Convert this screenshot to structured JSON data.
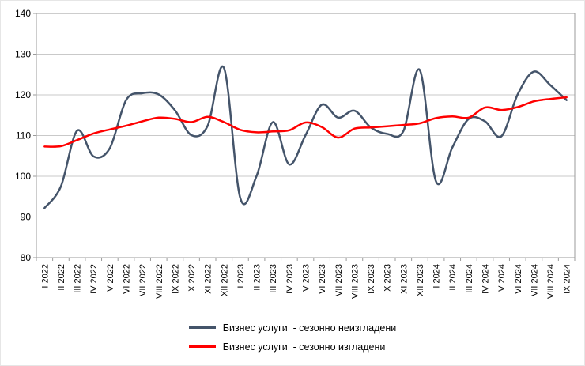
{
  "chart_data": {
    "type": "line",
    "title": "",
    "xlabel": "",
    "ylabel": "",
    "ylim": [
      80,
      140
    ],
    "ytick_step": 10,
    "grid": true,
    "legend_position": "bottom",
    "colors": {
      "grid": "#c9c9c9",
      "border": "#9b9b9b",
      "text": "#000000",
      "background": "#ffffff",
      "unadjusted_line": "#44546A",
      "adjusted_line": "#FF0000"
    },
    "categories": [
      "I 2022",
      "II 2022",
      "III 2022",
      "IV 2022",
      "V 2022",
      "VI 2022",
      "VII 2022",
      "VIII 2022",
      "IX 2022",
      "X 2022",
      "XI 2022",
      "XII 2022",
      "I 2023",
      "II 2023",
      "III 2023",
      "IV 2023",
      "V 2023",
      "VI 2023",
      "VII 2023",
      "VIII 2023",
      "IX 2023",
      "X 2023",
      "XI 2023",
      "XII 2023",
      "I 2024",
      "II 2024",
      "III 2024",
      "IV 2024",
      "V 2024",
      "VI 2024",
      "VII 2024",
      "VIII 2024",
      "IX 2024"
    ],
    "series": [
      {
        "name": "Бизнес услуги  - сезонно неизгладени",
        "color": "#44546A",
        "values": [
          92.2,
          97.5,
          111.2,
          104.9,
          106.9,
          118.7,
          120.4,
          120.1,
          116.2,
          110.1,
          112.4,
          126.6,
          94.6,
          100.1,
          113.3,
          102.9,
          110.1,
          117.6,
          114.4,
          116.1,
          112.0,
          110.4,
          111.1,
          126.1,
          98.7,
          107.1,
          114.1,
          113.5,
          109.8,
          120.1,
          125.7,
          122.4,
          118.7
        ]
      },
      {
        "name": "Бизнес услуги  - сезонно изгладени",
        "color": "#FF0000",
        "values": [
          107.3,
          107.4,
          108.9,
          110.5,
          111.5,
          112.4,
          113.5,
          114.4,
          114.1,
          113.3,
          114.6,
          113.3,
          111.4,
          110.8,
          111.0,
          111.3,
          113.2,
          112.1,
          109.5,
          111.7,
          112.0,
          112.3,
          112.6,
          113.0,
          114.3,
          114.7,
          114.4,
          116.9,
          116.3,
          117.0,
          118.4,
          119.0,
          119.4
        ]
      }
    ]
  }
}
